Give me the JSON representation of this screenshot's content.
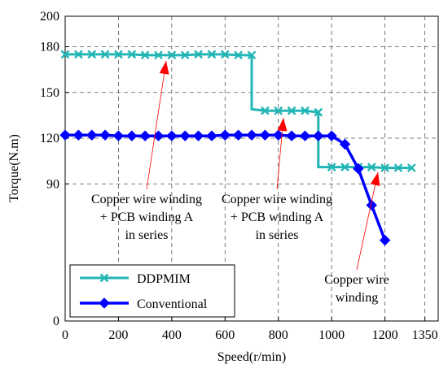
{
  "chart_data": {
    "type": "line",
    "xlabel": "Speed(r/min)",
    "ylabel": "Torque(N.m)",
    "xlim": [
      0,
      1400
    ],
    "ylim": [
      0,
      200
    ],
    "x_ticks": [
      0,
      200,
      400,
      600,
      800,
      1000,
      1200,
      1350
    ],
    "y_ticks": [
      0,
      90,
      120,
      150,
      180,
      200
    ],
    "grid": true,
    "legend_position": "bottom-left",
    "series": [
      {
        "name": "DDPMIM",
        "color": "#22b5b5",
        "marker": "x",
        "points": [
          [
            0,
            175
          ],
          [
            50,
            175
          ],
          [
            100,
            175
          ],
          [
            150,
            175
          ],
          [
            200,
            175
          ],
          [
            250,
            175
          ],
          [
            300,
            174.5
          ],
          [
            350,
            174.5
          ],
          [
            400,
            174.5
          ],
          [
            450,
            174.5
          ],
          [
            500,
            175
          ],
          [
            550,
            175
          ],
          [
            600,
            175
          ],
          [
            650,
            174.5
          ],
          [
            700,
            174.5
          ],
          [
            700,
            139
          ],
          [
            750,
            138
          ],
          [
            800,
            138
          ],
          [
            850,
            138
          ],
          [
            900,
            138
          ],
          [
            950,
            137
          ],
          [
            950,
            101
          ],
          [
            1000,
            101
          ],
          [
            1050,
            101
          ],
          [
            1100,
            101
          ],
          [
            1150,
            101
          ],
          [
            1200,
            100.5
          ],
          [
            1250,
            100.5
          ],
          [
            1300,
            100.5
          ]
        ]
      },
      {
        "name": "Conventional",
        "color": "#0000ff",
        "marker": "diamond",
        "points": [
          [
            0,
            122
          ],
          [
            50,
            122
          ],
          [
            100,
            122
          ],
          [
            150,
            122
          ],
          [
            200,
            121.5
          ],
          [
            250,
            121.5
          ],
          [
            300,
            121.5
          ],
          [
            350,
            121.5
          ],
          [
            400,
            121.5
          ],
          [
            450,
            121.5
          ],
          [
            500,
            121.5
          ],
          [
            550,
            121.5
          ],
          [
            600,
            122
          ],
          [
            650,
            122
          ],
          [
            700,
            122
          ],
          [
            750,
            122
          ],
          [
            800,
            122
          ],
          [
            850,
            121.5
          ],
          [
            900,
            121.5
          ],
          [
            950,
            121.5
          ],
          [
            1000,
            121.5
          ],
          [
            1050,
            116
          ],
          [
            1100,
            100
          ],
          [
            1150,
            76
          ],
          [
            1200,
            53
          ]
        ]
      }
    ],
    "annotations": [
      {
        "lines": [
          "Copper wire winding",
          "+ PCB winding A",
          "in series"
        ]
      },
      {
        "lines": [
          "Copper wire winding",
          "+ PCB winding A",
          "in series"
        ]
      },
      {
        "lines": [
          "Copper wire",
          "winding"
        ]
      }
    ]
  }
}
